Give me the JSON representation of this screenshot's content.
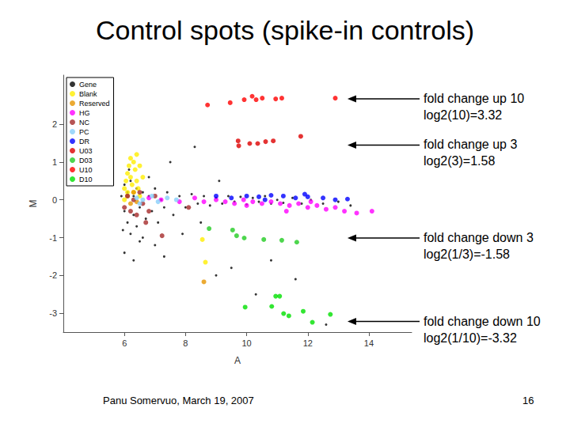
{
  "chart_data": {
    "type": "scatter",
    "title": "Control spots (spike-in controls)",
    "x_label": "A",
    "y_label": "M",
    "xlim": [
      4,
      15.4
    ],
    "xticks": [
      6,
      8,
      10,
      12,
      14
    ],
    "ylim": [
      -3.5,
      3.3
    ],
    "yticks": [
      -3,
      -2,
      -1,
      0,
      1,
      2
    ],
    "grid": false,
    "legend": "top-left",
    "series": [
      {
        "name": "Gene",
        "color": "#000000",
        "marker": "dot",
        "values": [
          [
            5.9,
            0.1
          ],
          [
            6.0,
            -0.3
          ],
          [
            6.0,
            0.4
          ],
          [
            6.1,
            -0.6
          ],
          [
            6.1,
            0.2
          ],
          [
            6.2,
            -0.9
          ],
          [
            6.2,
            0.5
          ],
          [
            6.3,
            -0.4
          ],
          [
            6.3,
            0.1
          ],
          [
            6.4,
            -0.7
          ],
          [
            6.4,
            0.3
          ],
          [
            6.5,
            -0.2
          ],
          [
            6.5,
            -1.1
          ],
          [
            6.6,
            0.2
          ],
          [
            6.7,
            -0.5
          ],
          [
            6.8,
            0.1
          ],
          [
            6.9,
            -0.3
          ],
          [
            7.0,
            0.3
          ],
          [
            7.1,
            -0.6
          ],
          [
            7.2,
            0.0
          ],
          [
            7.3,
            -0.2
          ],
          [
            7.4,
            0.2
          ],
          [
            7.6,
            -0.4
          ],
          [
            7.8,
            0.1
          ],
          [
            8.0,
            -0.2
          ],
          [
            8.2,
            0.15
          ],
          [
            8.4,
            -0.1
          ],
          [
            8.6,
            0.1
          ],
          [
            8.8,
            -0.15
          ],
          [
            9.0,
            0.05
          ],
          [
            9.2,
            -0.1
          ],
          [
            9.4,
            0.1
          ],
          [
            9.6,
            -0.05
          ],
          [
            9.8,
            0.08
          ],
          [
            10.0,
            -0.12
          ],
          [
            10.2,
            0.05
          ],
          [
            10.4,
            -0.05
          ],
          [
            10.6,
            0.1
          ],
          [
            10.8,
            -0.1
          ],
          [
            11.0,
            0.0
          ],
          [
            11.2,
            -0.08
          ],
          [
            11.5,
            0.05
          ],
          [
            11.8,
            -0.1
          ],
          [
            12.1,
            0.0
          ],
          [
            12.5,
            -0.1
          ],
          [
            13.0,
            -0.05
          ],
          [
            6.0,
            -1.4
          ],
          [
            6.3,
            -1.6
          ],
          [
            6.6,
            -1.0
          ],
          [
            7.0,
            -1.2
          ],
          [
            7.5,
            1.0
          ],
          [
            7.9,
            -0.9
          ],
          [
            8.5,
            -0.6
          ],
          [
            9.1,
            0.5
          ],
          [
            9.5,
            -1.8
          ],
          [
            10.3,
            -2.5
          ],
          [
            10.8,
            -1.6
          ],
          [
            11.6,
            -2.1
          ],
          [
            12.6,
            -3.3
          ],
          [
            13.4,
            -0.15
          ],
          [
            6.8,
            0.6
          ],
          [
            5.95,
            -0.8
          ],
          [
            6.15,
            0.8
          ],
          [
            8.3,
            1.4
          ],
          [
            9.0,
            -2.0
          ],
          [
            7.3,
            -1.5
          ]
        ]
      },
      {
        "name": "Blank",
        "color": "#ffee00",
        "marker": "circle",
        "values": [
          [
            6.0,
            0.3
          ],
          [
            6.05,
            0.5
          ],
          [
            6.1,
            0.7
          ],
          [
            6.15,
            0.9
          ],
          [
            6.2,
            0.6
          ],
          [
            6.25,
            0.4
          ],
          [
            6.3,
            1.0
          ],
          [
            6.35,
            0.8
          ],
          [
            6.4,
            1.2
          ],
          [
            6.4,
            0.5
          ],
          [
            6.45,
            0.3
          ],
          [
            6.5,
            0.9
          ],
          [
            6.1,
            0.2
          ],
          [
            6.2,
            1.1
          ],
          [
            6.0,
            0.0
          ],
          [
            6.3,
            0.2
          ],
          [
            8.55,
            -1.05
          ],
          [
            8.65,
            -1.65
          ],
          [
            6.6,
            0.6
          ],
          [
            6.5,
            0.1
          ]
        ]
      },
      {
        "name": "Reserved",
        "color": "#e69500",
        "marker": "circle",
        "values": [
          [
            6.1,
            0.1
          ],
          [
            6.2,
            -0.1
          ],
          [
            6.3,
            0.2
          ],
          [
            8.6,
            -2.17
          ],
          [
            6.4,
            -0.05
          ]
        ]
      },
      {
        "name": "HG",
        "color": "#ff00ff",
        "marker": "circle",
        "values": [
          [
            6.8,
            0.05
          ],
          [
            7.2,
            0.0
          ],
          [
            7.8,
            -0.05
          ],
          [
            8.3,
            0.05
          ],
          [
            8.6,
            -0.05
          ],
          [
            9.0,
            0.0
          ],
          [
            9.3,
            -0.05
          ],
          [
            9.6,
            -0.1
          ],
          [
            9.9,
            0.0
          ],
          [
            10.2,
            -0.05
          ],
          [
            10.5,
            -0.1
          ],
          [
            10.8,
            -0.05
          ],
          [
            11.1,
            -0.1
          ],
          [
            11.4,
            -0.15
          ],
          [
            11.7,
            -0.1
          ],
          [
            12.0,
            -0.2
          ],
          [
            12.3,
            -0.15
          ],
          [
            12.6,
            -0.25
          ],
          [
            12.9,
            -0.2
          ],
          [
            13.2,
            -0.3
          ],
          [
            13.6,
            -0.35
          ],
          [
            14.1,
            -0.3
          ],
          [
            11.3,
            -0.3
          ],
          [
            10.0,
            -0.15
          ],
          [
            12.1,
            -0.05
          ]
        ]
      },
      {
        "name": "NC",
        "color": "#a52a2a",
        "marker": "circle",
        "values": [
          [
            6.0,
            -0.2
          ],
          [
            6.1,
            0.1
          ],
          [
            6.2,
            -0.3
          ],
          [
            6.3,
            0.0
          ],
          [
            6.4,
            -0.4
          ],
          [
            6.5,
            0.2
          ],
          [
            6.6,
            -0.1
          ],
          [
            6.8,
            -0.3
          ],
          [
            7.0,
            0.1
          ],
          [
            7.23,
            -0.95
          ],
          [
            6.7,
            -0.6
          ],
          [
            8.1,
            -0.2
          ]
        ]
      },
      {
        "name": "PC",
        "color": "#87cefa",
        "marker": "circle",
        "values": [
          [
            6.4,
            0.05
          ],
          [
            6.6,
            0.0
          ],
          [
            6.9,
            0.1
          ],
          [
            7.1,
            -0.05
          ],
          [
            7.4,
            0.05
          ],
          [
            7.7,
            0.0
          ],
          [
            6.5,
            -0.1
          ]
        ]
      },
      {
        "name": "DR",
        "color": "#0000ff",
        "marker": "circle",
        "values": [
          [
            9.0,
            0.1
          ],
          [
            9.5,
            0.05
          ],
          [
            10.0,
            0.1
          ],
          [
            10.4,
            0.08
          ],
          [
            10.8,
            0.12
          ],
          [
            11.2,
            0.1
          ],
          [
            11.6,
            0.05
          ],
          [
            12.0,
            0.08
          ],
          [
            12.5,
            0.05
          ],
          [
            12.9,
            0.0
          ],
          [
            13.3,
            0.02
          ],
          [
            10.6,
            0.0
          ],
          [
            11.9,
            0.15
          ]
        ]
      },
      {
        "name": "U03",
        "color": "#dd0000",
        "marker": "circle",
        "values": [
          [
            9.72,
            1.56
          ],
          [
            9.74,
            1.43
          ],
          [
            10.1,
            1.49
          ],
          [
            10.36,
            1.49
          ],
          [
            10.62,
            1.54
          ],
          [
            10.87,
            1.56
          ],
          [
            11.77,
            1.68
          ]
        ]
      },
      {
        "name": "D03",
        "color": "#22cc22",
        "marker": "circle",
        "values": [
          [
            9.67,
            -0.95
          ],
          [
            9.92,
            -1.01
          ],
          [
            10.56,
            -1.05
          ],
          [
            11.15,
            -1.07
          ],
          [
            11.64,
            -1.12
          ],
          [
            8.77,
            -0.76
          ],
          [
            9.54,
            -0.8
          ]
        ]
      },
      {
        "name": "U10",
        "color": "#ff0000",
        "marker": "circle",
        "values": [
          [
            8.72,
            2.51
          ],
          [
            9.46,
            2.57
          ],
          [
            9.92,
            2.65
          ],
          [
            10.18,
            2.74
          ],
          [
            10.31,
            2.65
          ],
          [
            10.51,
            2.69
          ],
          [
            10.95,
            2.67
          ],
          [
            11.15,
            2.69
          ],
          [
            12.9,
            2.69
          ]
        ]
      },
      {
        "name": "D10",
        "color": "#00e000",
        "marker": "circle",
        "values": [
          [
            11.08,
            -2.55
          ],
          [
            10.95,
            -2.55
          ],
          [
            10.82,
            -2.82
          ],
          [
            11.21,
            -3.01
          ],
          [
            11.38,
            -3.07
          ],
          [
            11.85,
            -2.95
          ],
          [
            12.15,
            -3.24
          ],
          [
            12.74,
            -3.03
          ],
          [
            9.95,
            -2.84
          ]
        ]
      }
    ],
    "annotations": [
      {
        "text": [
          "fold change up 10",
          "log2(10)=3.32"
        ],
        "at": [
          13.3,
          2.67
        ]
      },
      {
        "text": [
          "fold change up 3",
          "log2(3)=1.58"
        ],
        "at": [
          13.3,
          1.45
        ]
      },
      {
        "text": [
          "fold change down 3",
          "log2(1/3)=-1.58"
        ],
        "at": [
          13.3,
          -1.01
        ]
      },
      {
        "text": [
          "fold change down 10",
          "log2(1/10)=-3.32"
        ],
        "at": [
          13.3,
          -3.22
        ]
      }
    ],
    "footer": "Panu Somervuo, March 19, 2007",
    "page_number": 16
  }
}
